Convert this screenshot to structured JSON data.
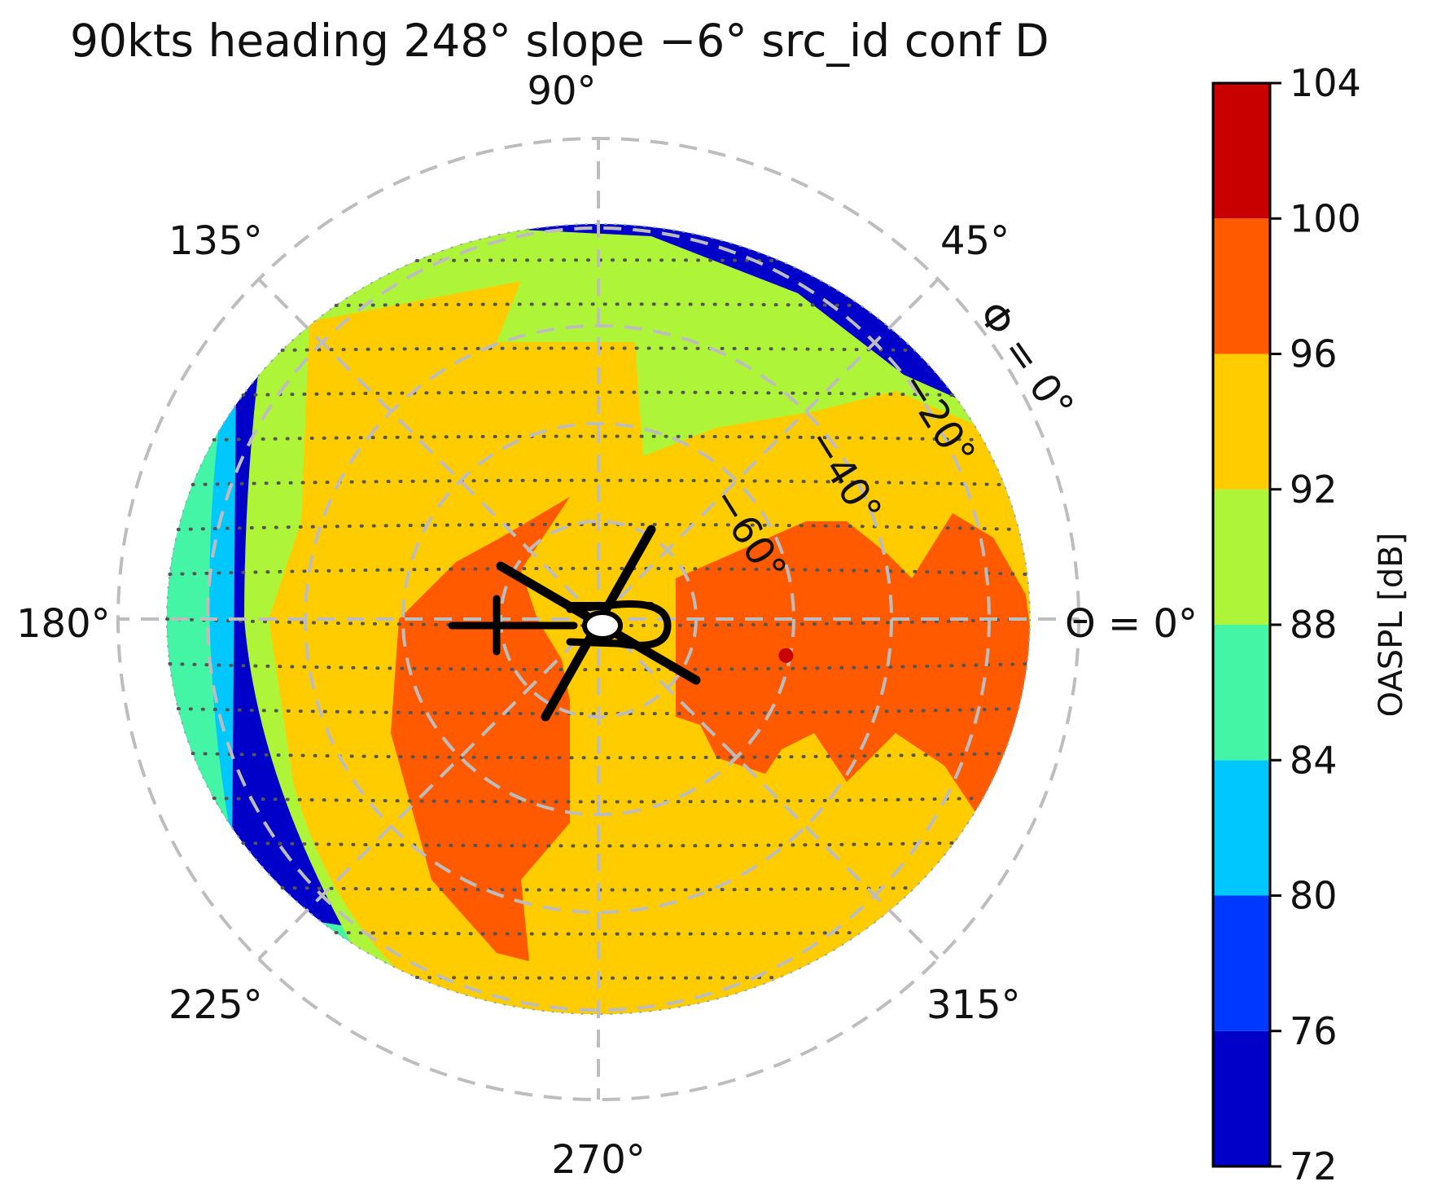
{
  "chart_data": {
    "type": "heatmap",
    "projection": "polar (azimuth Θ vs elevation Φ)",
    "title": "90kts heading 248° slope −6° src_id conf D",
    "azimuth_labels": [
      "Θ = 0°",
      "45°",
      "90°",
      "135°",
      "180°",
      "225°",
      "270°",
      "315°"
    ],
    "elevation_labels": [
      "Φ = 0°",
      "−20°",
      "−40°",
      "−60°"
    ],
    "colorbar": {
      "label": "OASPL [dB]",
      "ticks": [
        72,
        76,
        80,
        84,
        88,
        92,
        96,
        100,
        104
      ],
      "levels": [
        {
          "min": 72,
          "max": 76,
          "color": "#0000c8"
        },
        {
          "min": 76,
          "max": 80,
          "color": "#0038ff"
        },
        {
          "min": 80,
          "max": 84,
          "color": "#00c8ff"
        },
        {
          "min": 84,
          "max": 88,
          "color": "#44f5a6"
        },
        {
          "min": 88,
          "max": 92,
          "color": "#aef53a"
        },
        {
          "min": 92,
          "max": 96,
          "color": "#ffcc00"
        },
        {
          "min": 96,
          "max": 100,
          "color": "#ff5a00"
        },
        {
          "min": 100,
          "max": 104,
          "color": "#c80000"
        }
      ]
    },
    "max_marker": {
      "azimuth_deg": 348,
      "elevation_deg": -50,
      "color": "#c80000"
    },
    "grid": true
  }
}
